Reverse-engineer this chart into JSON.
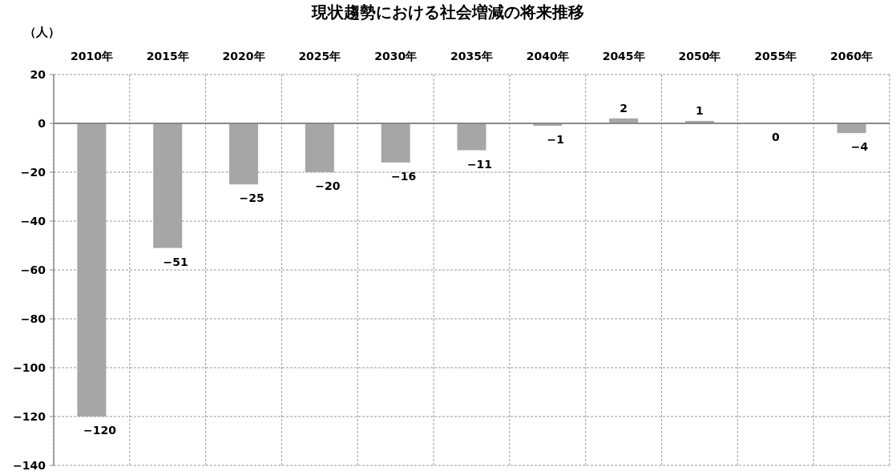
{
  "chart_data": {
    "type": "bar",
    "title": "現状趨勢における社会増減の将来推移",
    "ylabel": "（人）",
    "categories": [
      "2010年",
      "2015年",
      "2020年",
      "2025年",
      "2030年",
      "2035年",
      "2040年",
      "2045年",
      "2050年",
      "2055年",
      "2060年"
    ],
    "values": [
      -120,
      -51,
      -25,
      -20,
      -16,
      -11,
      -1,
      2,
      1,
      0,
      -4
    ],
    "color": "#a6a6a6",
    "ylim": [
      -140,
      20
    ],
    "yticks": [
      -140,
      -120,
      -100,
      -80,
      -60,
      -40,
      -20,
      0,
      20
    ],
    "grid": true,
    "data_labels": true
  }
}
